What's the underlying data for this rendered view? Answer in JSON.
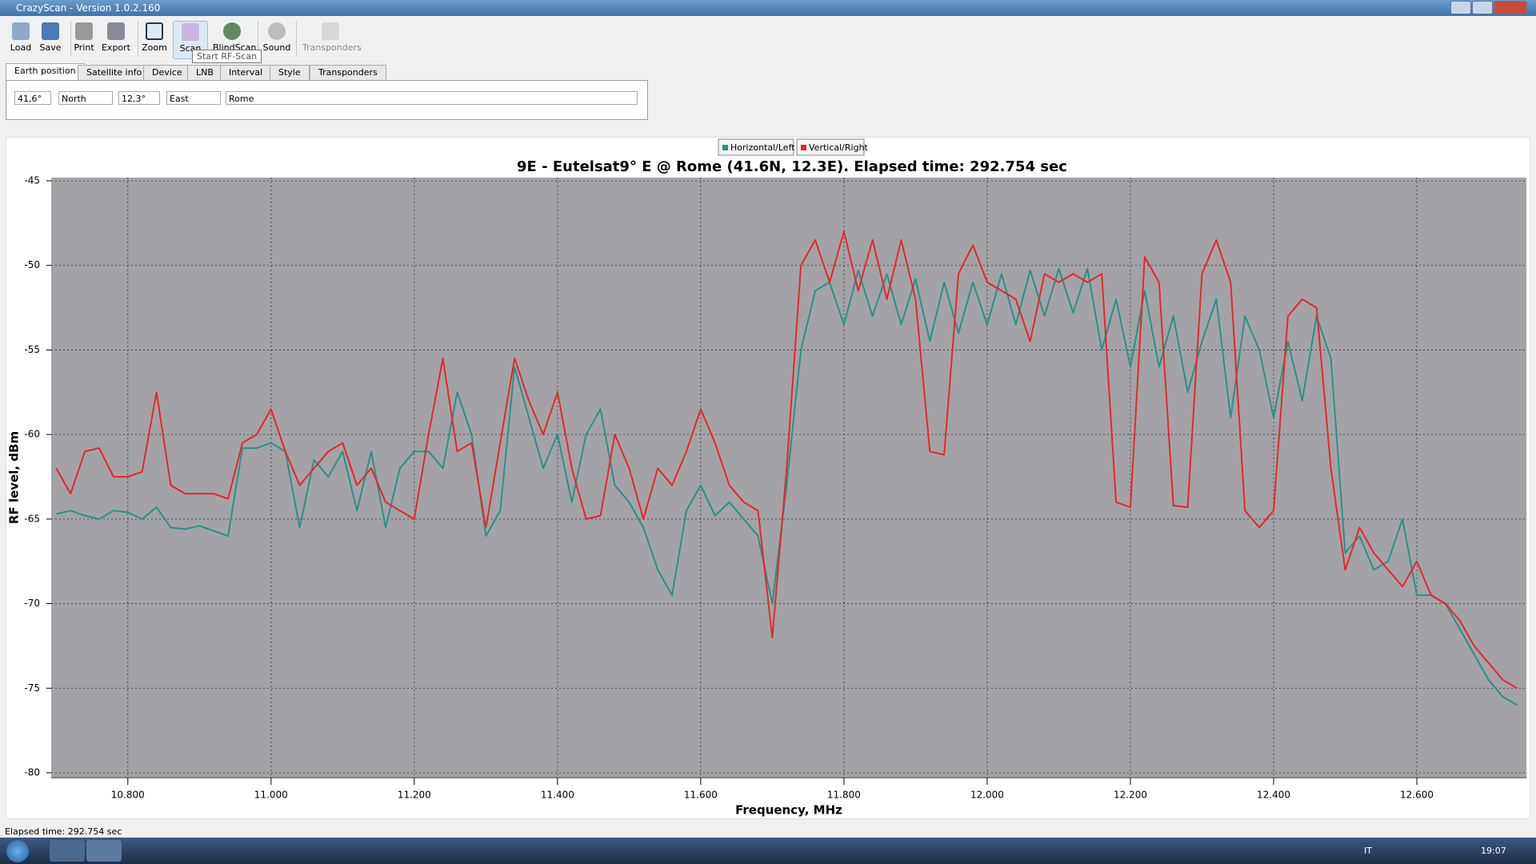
{
  "window": {
    "title": "CrazyScan - Version 1.0.2.160",
    "toolbar": [
      "Load",
      "Save",
      "Print",
      "Export",
      "Zoom",
      "Scan",
      "BlindScan",
      "Sound",
      "Transponders"
    ],
    "tooltip": "Start RF-Scan",
    "tabs": [
      "Earth position",
      "Satellite info",
      "Device",
      "LNB",
      "Interval",
      "Style",
      "Transponders"
    ],
    "fields": {
      "latitude": "41,6°",
      "lat_dir": "North",
      "longitude": "12,3°",
      "lon_dir": "East",
      "place": "Rome"
    },
    "status": "Elapsed time: 292.754 sec",
    "taskbar": {
      "lang": "IT",
      "clock": "19:07"
    }
  },
  "chart_data": {
    "type": "line",
    "title": "9E - Eutelsat9° E  @ Rome (41.6N, 12.3E). Elapsed time: 292.754 sec",
    "x_label": "Frequency, MHz",
    "y_label": "RF level, dBm",
    "xlim": [
      10693,
      12753
    ],
    "ylim": [
      -80,
      -45
    ],
    "xticks": [
      {
        "value": 10800,
        "label": "10.800"
      },
      {
        "value": 11000,
        "label": "11.000"
      },
      {
        "value": 11200,
        "label": "11.200"
      },
      {
        "value": 11400,
        "label": "11.400"
      },
      {
        "value": 11600,
        "label": "11.600"
      },
      {
        "value": 11800,
        "label": "11.800"
      },
      {
        "value": 12000,
        "label": "12.000"
      },
      {
        "value": 12200,
        "label": "12.200"
      },
      {
        "value": 12400,
        "label": "12.400"
      },
      {
        "value": 12600,
        "label": "12.600"
      }
    ],
    "yticks": [
      -45,
      -50,
      -55,
      -60,
      -65,
      -70,
      -75,
      -80
    ],
    "grid": true,
    "legend": "top",
    "x": [
      10700,
      10720,
      10740,
      10760,
      10780,
      10800,
      10820,
      10840,
      10860,
      10880,
      10900,
      10920,
      10940,
      10960,
      10980,
      11000,
      11020,
      11040,
      11060,
      11080,
      11100,
      11120,
      11140,
      11160,
      11180,
      11200,
      11220,
      11240,
      11260,
      11280,
      11300,
      11320,
      11340,
      11360,
      11380,
      11400,
      11420,
      11440,
      11460,
      11480,
      11500,
      11520,
      11540,
      11560,
      11580,
      11600,
      11620,
      11640,
      11660,
      11680,
      11700,
      11720,
      11740,
      11760,
      11780,
      11800,
      11820,
      11840,
      11860,
      11880,
      11900,
      11920,
      11940,
      11960,
      11980,
      12000,
      12020,
      12040,
      12060,
      12080,
      12100,
      12120,
      12140,
      12160,
      12180,
      12200,
      12220,
      12240,
      12260,
      12280,
      12300,
      12320,
      12340,
      12360,
      12380,
      12400,
      12420,
      12440,
      12460,
      12480,
      12500,
      12520,
      12540,
      12560,
      12580,
      12600,
      12620,
      12640,
      12660,
      12680,
      12700,
      12720,
      12740
    ],
    "series": [
      {
        "name": "Horizontal/Left",
        "color": "#2a9088",
        "values": [
          -64.7,
          -64.5,
          -64.8,
          -65,
          -64.5,
          -64.6,
          -65,
          -64.3,
          -65.5,
          -65.6,
          -65.4,
          -65.7,
          -66,
          -60.8,
          -60.8,
          -60.5,
          -61,
          -65.5,
          -61.5,
          -62.5,
          -61,
          -64.5,
          -61,
          -65.5,
          -62,
          -61,
          -61,
          -62,
          -57.5,
          -60,
          -66,
          -64.5,
          -56,
          -59,
          -62,
          -60,
          -64,
          -60,
          -58.5,
          -63,
          -64,
          -65.5,
          -68,
          -69.5,
          -64.5,
          -63,
          -64.8,
          -64,
          -65,
          -66,
          -70,
          -63,
          -55,
          -51.5,
          -51,
          -53.5,
          -50.3,
          -53,
          -50.5,
          -53.5,
          -50.8,
          -54.5,
          -51,
          -54,
          -51,
          -53.5,
          -50.5,
          -53.5,
          -50.3,
          -53,
          -50.2,
          -52.8,
          -50.2,
          -55,
          -52,
          -56,
          -51.5,
          -56,
          -53,
          -57.5,
          -54.5,
          -52,
          -59,
          -53,
          -55,
          -59,
          -54.5,
          -58,
          -53,
          -55.5,
          -67,
          -66,
          -68,
          -67.5,
          -65,
          -69.5,
          -69.5,
          -70,
          -71.5,
          -73,
          -74.5,
          -75.5,
          -76
        ]
      },
      {
        "name": "Vertical/Right",
        "color": "#e8262b",
        "values": [
          -62,
          -63.5,
          -61,
          -60.8,
          -62.5,
          -62.5,
          -62.2,
          -57.5,
          -63,
          -63.5,
          -63.5,
          -63.5,
          -63.8,
          -60.5,
          -60,
          -58.5,
          -61,
          -63,
          -62,
          -61,
          -60.5,
          -63,
          -62,
          -64,
          -64.5,
          -65,
          -60,
          -55.5,
          -61,
          -60.5,
          -65.5,
          -60.5,
          -55.5,
          -58,
          -60,
          -57.5,
          -62,
          -65,
          -64.8,
          -60,
          -62,
          -65,
          -62,
          -63,
          -61,
          -58.5,
          -60.5,
          -63,
          -64,
          -64.5,
          -72,
          -62,
          -50,
          -48.5,
          -51,
          -48,
          -51.5,
          -48.5,
          -52,
          -48.5,
          -52,
          -61,
          -61.2,
          -50.5,
          -48.8,
          -51,
          -51.5,
          -52,
          -54.5,
          -50.5,
          -51,
          -50.5,
          -51,
          -50.5,
          -64,
          -64.3,
          -49.5,
          -51,
          -64.2,
          -64.3,
          -50.5,
          -48.5,
          -51,
          -64.5,
          -65.5,
          -64.5,
          -53,
          -52,
          -52.5,
          -62,
          -68,
          -65.5,
          -67,
          -68,
          -69,
          -67.5,
          -69.5,
          -70,
          -71,
          -72.5,
          -73.5,
          -74.5,
          -75
        ]
      }
    ]
  }
}
